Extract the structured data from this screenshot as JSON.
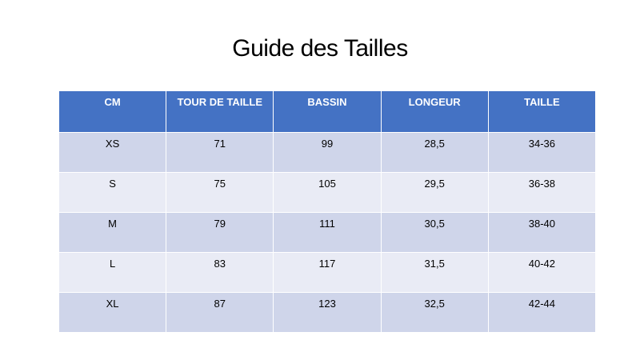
{
  "title": "Guide des Tailles",
  "table": {
    "headers": [
      "CM",
      "TOUR DE TAILLE",
      "BASSIN",
      "LONGEUR",
      "TAILLE"
    ],
    "rows": [
      [
        "XS",
        "71",
        "99",
        "28,5",
        "34-36"
      ],
      [
        "S",
        "75",
        "105",
        "29,5",
        "36-38"
      ],
      [
        "M",
        "79",
        "111",
        "30,5",
        "38-40"
      ],
      [
        "L",
        "83",
        "117",
        "31,5",
        "40-42"
      ],
      [
        "XL",
        "87",
        "123",
        "32,5",
        "42-44"
      ]
    ]
  },
  "colors": {
    "header_bg": "#4472c4",
    "row_odd_bg": "#cfd5ea",
    "row_even_bg": "#e9ebf5"
  }
}
